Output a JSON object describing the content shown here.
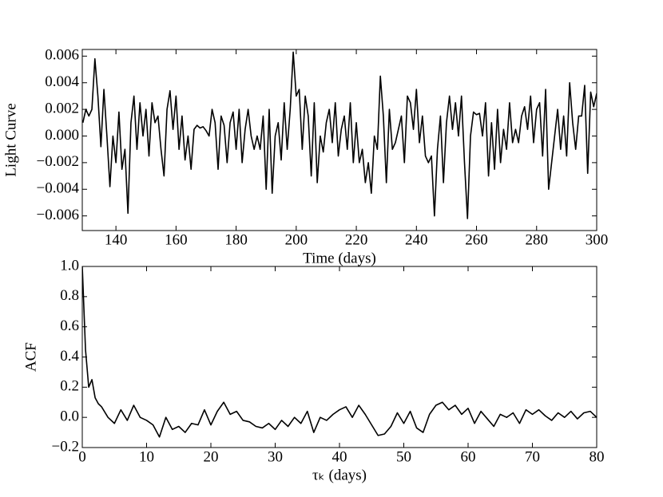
{
  "chart_data": [
    {
      "type": "line",
      "ylabel": "Light Curve",
      "xlabel": "Time (days)",
      "color": "#000000",
      "xlim": [
        128.8,
        300
      ],
      "ylim": [
        -0.0071,
        0.0065
      ],
      "xticks": [
        140,
        160,
        180,
        200,
        220,
        240,
        260,
        280,
        300
      ],
      "yticks": [
        {
          "value": -0.006,
          "label": "−0.006"
        },
        {
          "value": -0.004,
          "label": "−0.004"
        },
        {
          "value": -0.002,
          "label": "−0.002"
        },
        {
          "value": 0,
          "label": "0.000"
        },
        0.002,
        0.004,
        0.006
      ],
      "x": [
        129,
        130,
        131,
        132,
        133,
        134,
        135,
        136,
        137,
        138,
        139,
        140,
        141,
        142,
        143,
        144,
        145,
        146,
        147,
        148,
        149,
        150,
        151,
        152,
        153,
        154,
        155,
        156,
        157,
        158,
        159,
        160,
        161,
        162,
        163,
        164,
        165,
        166,
        167,
        168,
        169,
        170,
        171,
        172,
        173,
        174,
        175,
        176,
        177,
        178,
        179,
        180,
        181,
        182,
        183,
        184,
        185,
        186,
        187,
        188,
        189,
        190,
        191,
        192,
        193,
        194,
        195,
        196,
        197,
        198,
        199,
        200,
        201,
        202,
        203,
        204,
        205,
        206,
        207,
        208,
        209,
        210,
        211,
        212,
        213,
        214,
        215,
        216,
        217,
        218,
        219,
        220,
        221,
        222,
        223,
        224,
        225,
        226,
        227,
        228,
        229,
        230,
        231,
        232,
        233,
        234,
        235,
        236,
        237,
        238,
        239,
        240,
        241,
        242,
        243,
        244,
        245,
        246,
        247,
        248,
        249,
        250,
        251,
        252,
        253,
        254,
        255,
        256,
        257,
        258,
        259,
        260,
        261,
        262,
        263,
        264,
        265,
        266,
        267,
        268,
        269,
        270,
        271,
        272,
        273,
        274,
        275,
        276,
        277,
        278,
        279,
        280,
        281,
        282,
        283,
        284,
        285,
        286,
        287,
        288,
        289,
        290,
        291,
        292,
        293,
        294,
        295,
        296,
        297,
        298,
        299,
        300
      ],
      "values": [
        0.001,
        0.002,
        0.0015,
        0.002,
        0.0058,
        0.003,
        -0.0008,
        0.0035,
        0.0,
        -0.0038,
        0.0,
        -0.002,
        0.0018,
        -0.0025,
        -0.001,
        -0.0058,
        0.001,
        0.003,
        -0.001,
        0.0025,
        0.0,
        0.002,
        -0.0015,
        0.0025,
        0.001,
        0.0015,
        -0.001,
        -0.003,
        0.002,
        0.0034,
        0.0005,
        0.003,
        -0.001,
        0.0015,
        -0.0018,
        0.0,
        -0.0025,
        0.0005,
        0.0008,
        0.0006,
        0.0007,
        0.0004,
        0.0,
        0.002,
        0.001,
        -0.0025,
        0.0015,
        0.0008,
        -0.002,
        0.001,
        0.0018,
        -0.001,
        0.002,
        -0.002,
        0.0005,
        0.002,
        0.0,
        -0.001,
        0.0,
        -0.001,
        0.0015,
        -0.004,
        0.002,
        -0.0043,
        0.0,
        0.001,
        -0.0018,
        0.0025,
        -0.001,
        0.002,
        0.0063,
        0.003,
        0.0035,
        -0.001,
        0.003,
        0.0015,
        -0.003,
        0.0025,
        -0.0035,
        0.0,
        -0.0012,
        0.001,
        0.002,
        -0.0005,
        0.0025,
        -0.0015,
        0.0005,
        0.0015,
        -0.001,
        0.0025,
        -0.002,
        0.001,
        -0.002,
        -0.001,
        -0.0035,
        -0.002,
        -0.0043,
        0.0,
        -0.001,
        0.0045,
        0.0015,
        -0.0035,
        0.002,
        -0.001,
        -0.0005,
        0.0005,
        0.0015,
        -0.002,
        0.003,
        0.0025,
        0.0005,
        0.0035,
        -0.0005,
        0.0015,
        -0.0015,
        -0.002,
        -0.0015,
        -0.006,
        -0.001,
        0.0015,
        -0.0035,
        0.001,
        0.003,
        0.0005,
        0.0025,
        0.0,
        0.003,
        -0.002,
        -0.0062,
        0.0,
        0.0018,
        0.0016,
        0.0017,
        0.0,
        0.0025,
        -0.003,
        0.001,
        -0.0025,
        0.002,
        -0.002,
        0.0005,
        -0.001,
        0.0025,
        -0.0005,
        0.0005,
        -0.0005,
        0.0015,
        0.0022,
        0.0005,
        0.003,
        -0.0005,
        0.002,
        0.0025,
        -0.0015,
        0.0035,
        -0.004,
        -0.002,
        0.0,
        0.002,
        -0.001,
        0.0015,
        -0.0015,
        0.004,
        0.001,
        -0.001,
        0.0015,
        0.0015,
        0.0038,
        -0.0028,
        0.0033,
        0.0022,
        0.0032
      ]
    },
    {
      "type": "line",
      "ylabel": "ACF",
      "xlabel": "τₖ (days)",
      "color": "#000000",
      "xlim": [
        0,
        80
      ],
      "ylim": [
        -0.2,
        1.0
      ],
      "xticks": [
        0,
        10,
        20,
        30,
        40,
        50,
        60,
        70,
        80
      ],
      "yticks": [
        {
          "value": -0.2,
          "label": "−0.2"
        },
        {
          "value": 0,
          "label": "0.0"
        },
        0.2,
        0.4,
        0.6,
        0.8,
        {
          "value": 1,
          "label": "1.0"
        }
      ],
      "x": [
        0,
        0.5,
        1,
        1.5,
        2,
        2.5,
        3,
        4,
        5,
        6,
        7,
        8,
        9,
        10,
        11,
        12,
        13,
        14,
        15,
        16,
        17,
        18,
        19,
        20,
        21,
        22,
        23,
        24,
        25,
        26,
        27,
        28,
        29,
        30,
        31,
        32,
        33,
        34,
        35,
        36,
        37,
        38,
        39,
        40,
        41,
        42,
        43,
        44,
        45,
        46,
        47,
        48,
        49,
        50,
        51,
        52,
        53,
        54,
        55,
        56,
        57,
        58,
        59,
        60,
        61,
        62,
        63,
        64,
        65,
        66,
        67,
        68,
        69,
        70,
        71,
        72,
        73,
        74,
        75,
        76,
        77,
        78,
        79,
        80
      ],
      "values": [
        1.0,
        0.45,
        0.2,
        0.25,
        0.13,
        0.09,
        0.07,
        0.0,
        -0.04,
        0.05,
        -0.02,
        0.08,
        0.0,
        -0.02,
        -0.05,
        -0.13,
        0.0,
        -0.08,
        -0.06,
        -0.1,
        -0.04,
        -0.05,
        0.05,
        -0.05,
        0.04,
        0.1,
        0.02,
        0.04,
        -0.02,
        -0.03,
        -0.06,
        -0.07,
        -0.04,
        -0.08,
        -0.02,
        -0.06,
        0.0,
        -0.04,
        0.04,
        -0.1,
        0.0,
        -0.02,
        0.02,
        0.05,
        0.07,
        0.0,
        0.08,
        0.02,
        -0.05,
        -0.12,
        -0.11,
        -0.06,
        0.03,
        -0.04,
        0.04,
        -0.07,
        -0.1,
        0.02,
        0.08,
        0.1,
        0.05,
        0.08,
        0.02,
        0.06,
        -0.04,
        0.04,
        -0.01,
        -0.06,
        0.02,
        0.0,
        0.03,
        -0.04,
        0.05,
        0.02,
        0.05,
        0.01,
        -0.02,
        0.03,
        0.0,
        0.04,
        -0.01,
        0.03,
        0.04,
        0.0
      ]
    }
  ]
}
